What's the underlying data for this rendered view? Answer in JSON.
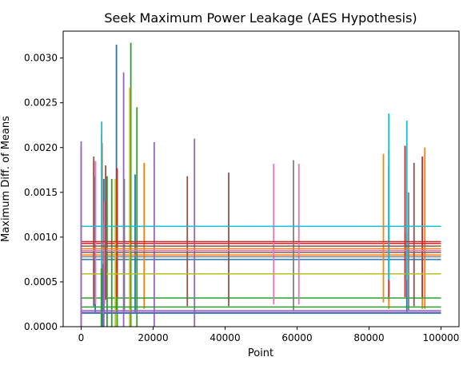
{
  "chart_data": {
    "type": "line",
    "title": "Seek Maximum Power Leakage (AES Hypothesis)",
    "xlabel": "Point",
    "ylabel": "Maximum Diff. of Means",
    "xlim": [
      -5000,
      105000
    ],
    "ylim": [
      0,
      0.0033
    ],
    "xticks": [
      0,
      20000,
      40000,
      60000,
      80000,
      100000
    ],
    "xtick_labels": [
      "0",
      "20000",
      "40000",
      "60000",
      "80000",
      "100000"
    ],
    "yticks": [
      0,
      0.0005,
      0.001,
      0.0015,
      0.002,
      0.0025,
      0.003
    ],
    "ytick_labels": [
      "0.0000",
      "0.0005",
      "0.0010",
      "0.0015",
      "0.0020",
      "0.0025",
      "0.0030"
    ],
    "grid": false,
    "legend": false,
    "series": [
      {
        "color": "#1f77b4",
        "baseline": 0.00075,
        "spikes": [
          [
            3900,
            0.00168
          ],
          [
            6300,
            0.00165
          ],
          [
            9800,
            0.00315
          ],
          [
            15000,
            0.0017
          ],
          [
            90500,
            0.00105
          ]
        ]
      },
      {
        "color": "#ff7f0e",
        "baseline": 0.0008,
        "spikes": [
          [
            5700,
            0.00215
          ],
          [
            17500,
            0.00183
          ],
          [
            85500,
            0.0018
          ],
          [
            95500,
            0.002
          ],
          [
            94800,
            0.00165
          ]
        ]
      },
      {
        "color": "#2ca02c",
        "baseline": 0.00032,
        "spikes": [
          [
            7200,
            0.00168
          ],
          [
            8500,
            0.00165
          ],
          [
            13800,
            0.00317
          ],
          [
            15500,
            0.00245
          ],
          [
            10000,
            0.0015
          ]
        ]
      },
      {
        "color": "#d62728",
        "baseline": 0.00093,
        "spikes": [
          [
            3500,
            0.00185
          ],
          [
            10000,
            0.00177
          ],
          [
            85500,
            0.00197
          ],
          [
            90000,
            0.00202
          ],
          [
            94800,
            0.0019
          ]
        ]
      },
      {
        "color": "#9467bd",
        "baseline": 0.00018,
        "spikes": [
          [
            0,
            0.00207
          ],
          [
            6300,
            0.00118
          ],
          [
            11800,
            0.00284
          ],
          [
            20300,
            0.00206
          ],
          [
            31500,
            0.0021
          ]
        ]
      },
      {
        "color": "#8c564b",
        "baseline": 0.00083,
        "spikes": [
          [
            3500,
            0.0019
          ],
          [
            5800,
            0.00205
          ],
          [
            29500,
            0.00168
          ],
          [
            41000,
            0.00172
          ],
          [
            92500,
            0.00183
          ]
        ]
      },
      {
        "color": "#e377c2",
        "baseline": 0.00085,
        "spikes": [
          [
            4000,
            0.00185
          ],
          [
            6500,
            0.0014
          ],
          [
            53500,
            0.00182
          ],
          [
            60500,
            0.00182
          ]
        ]
      },
      {
        "color": "#7f7f7f",
        "baseline": 0.00078,
        "spikes": [
          [
            12000,
            0.00165
          ],
          [
            59000,
            0.00186
          ],
          [
            91000,
            0.0015
          ]
        ]
      },
      {
        "color": "#bcbd22",
        "baseline": 0.00059,
        "spikes": [
          [
            9500,
            0.00165
          ],
          [
            13500,
            0.00267
          ]
        ]
      },
      {
        "color": "#17becf",
        "baseline": 0.00112,
        "spikes": [
          [
            5700,
            0.00229
          ],
          [
            85500,
            0.00238
          ],
          [
            90500,
            0.0023
          ]
        ]
      },
      {
        "color": "#1f77b4",
        "baseline": 0.00015,
        "spikes": [
          [
            5900,
            0.0006
          ]
        ]
      },
      {
        "color": "#ff7f0e",
        "baseline": 0.00087,
        "spikes": [
          [
            84000,
            0.00193
          ]
        ]
      },
      {
        "color": "#2ca02c",
        "baseline": 0.00022,
        "spikes": [
          [
            5600,
            0.00065
          ]
        ]
      },
      {
        "color": "#d62728",
        "baseline": 0.00095,
        "spikes": []
      },
      {
        "color": "#9467bd",
        "baseline": 0.00016,
        "spikes": [
          [
            6200,
            0.0007
          ],
          [
            0,
            0.002
          ]
        ]
      },
      {
        "color": "#8c564b",
        "baseline": 0.0009,
        "spikes": [
          [
            6800,
            0.0018
          ]
        ]
      }
    ]
  }
}
